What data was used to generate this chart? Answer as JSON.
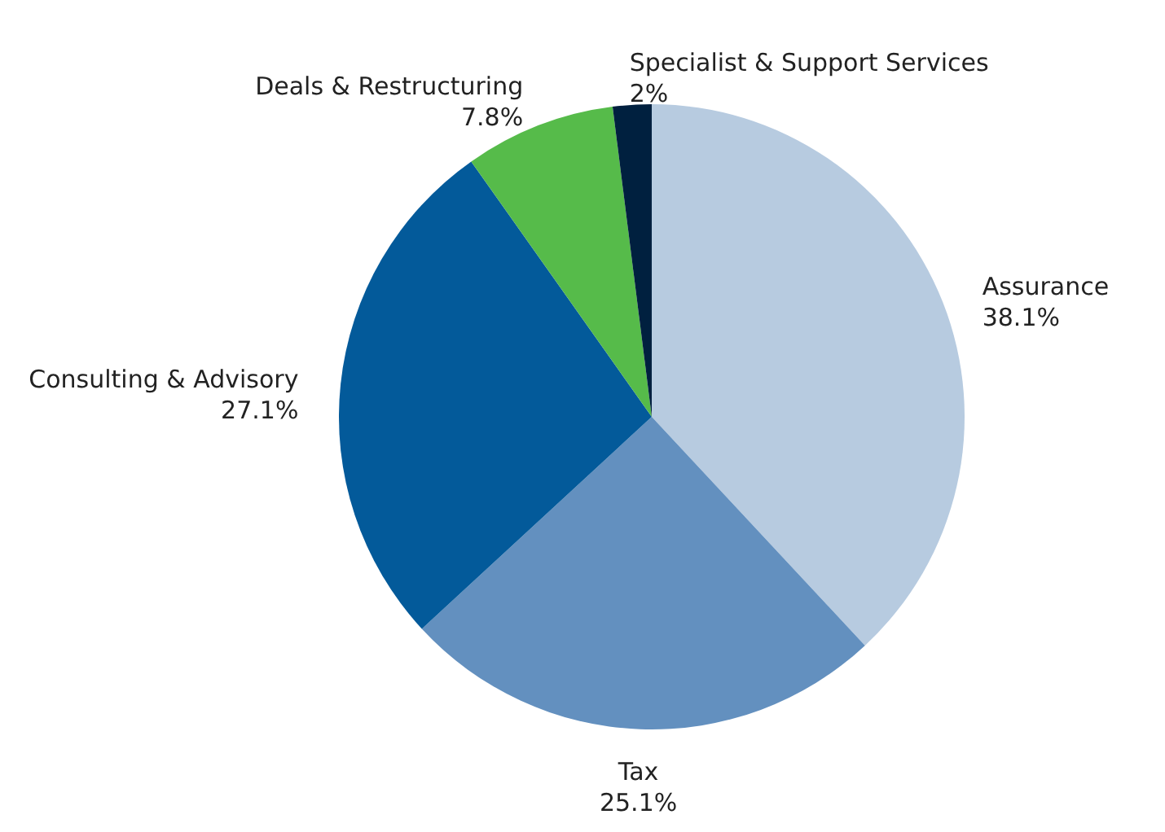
{
  "chart_data": {
    "type": "pie",
    "categories": [
      "Assurance",
      "Tax",
      "Consulting & Advisory",
      "Deals & Restructuring",
      "Specialist & Support Services"
    ],
    "values": [
      38.1,
      25.1,
      27.1,
      7.8,
      2
    ],
    "value_labels": [
      "38.1%",
      "25.1%",
      "27.1%",
      "7.8%",
      "2%"
    ],
    "colors": [
      "#b7cbe0",
      "#6390bf",
      "#035a9a",
      "#56bb4a",
      "#00203f"
    ]
  }
}
